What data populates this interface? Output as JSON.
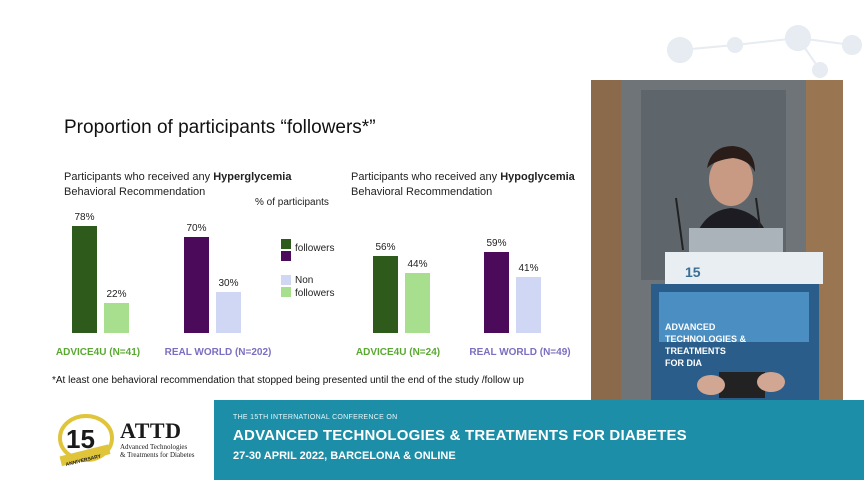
{
  "slide": {
    "title": "Proportion of participants “followers*”",
    "footnote": "*At least one behavioral recommendation that stopped being presented until the end of the study /follow up"
  },
  "y_axis_label": "% of participants",
  "legend": {
    "followers": "followers",
    "non_followers_line1": "Non",
    "non_followers_line2": "followers"
  },
  "colors": {
    "advice4u_followers": "#2e5a1c",
    "advice4u_non": "#a8df8e",
    "realworld_followers": "#4b0a5a",
    "realworld_non": "#d0d7f5",
    "advice4u_label": "#5aa832",
    "realworld_label": "#7a6fc0",
    "banner": "#1d8ea8"
  },
  "chart_data": [
    {
      "type": "bar",
      "subtitle_prefix": "Participants who received any ",
      "subtitle_bold": "Hyperglycemia",
      "subtitle_line2": "Behavioral Recommendation",
      "groups": [
        {
          "label": "ADVICE4U (N=41)",
          "followers": 78,
          "non_followers": 22,
          "followers_label": "78%",
          "non_label": "22%"
        },
        {
          "label": "REAL WORLD (N=202)",
          "followers": 70,
          "non_followers": 30,
          "followers_label": "70%",
          "non_label": "30%"
        }
      ],
      "ylim": [
        0,
        100
      ]
    },
    {
      "type": "bar",
      "subtitle_prefix": "Participants who received any ",
      "subtitle_bold": "Hypoglycemia",
      "subtitle_line2": "Behavioral Recommendation",
      "groups": [
        {
          "label": "ADVICE4U (N=24)",
          "followers": 56,
          "non_followers": 44,
          "followers_label": "56%",
          "non_label": "44%"
        },
        {
          "label": "REAL WORLD (N=49)",
          "followers": 59,
          "non_followers": 41,
          "followers_label": "59%",
          "non_label": "41%"
        }
      ],
      "ylim": [
        0,
        100
      ]
    }
  ],
  "banner": {
    "line1": "THE 15TH INTERNATIONAL CONFERENCE ON",
    "line2": "ADVANCED TECHNOLOGIES & TREATMENTS FOR DIABETES",
    "line3": "27-30 APRIL 2022, BARCELONA & ONLINE"
  },
  "logo": {
    "years": "15",
    "word": "ATTD",
    "tagline1": "Advanced Technologies",
    "tagline2": "& Treatments for Diabetes",
    "anniversary": "ANNIVERSARY"
  },
  "video": {
    "podium_text": "ADVANCED TECHNOLOGIES & TREATMENTS FOR DIA"
  }
}
